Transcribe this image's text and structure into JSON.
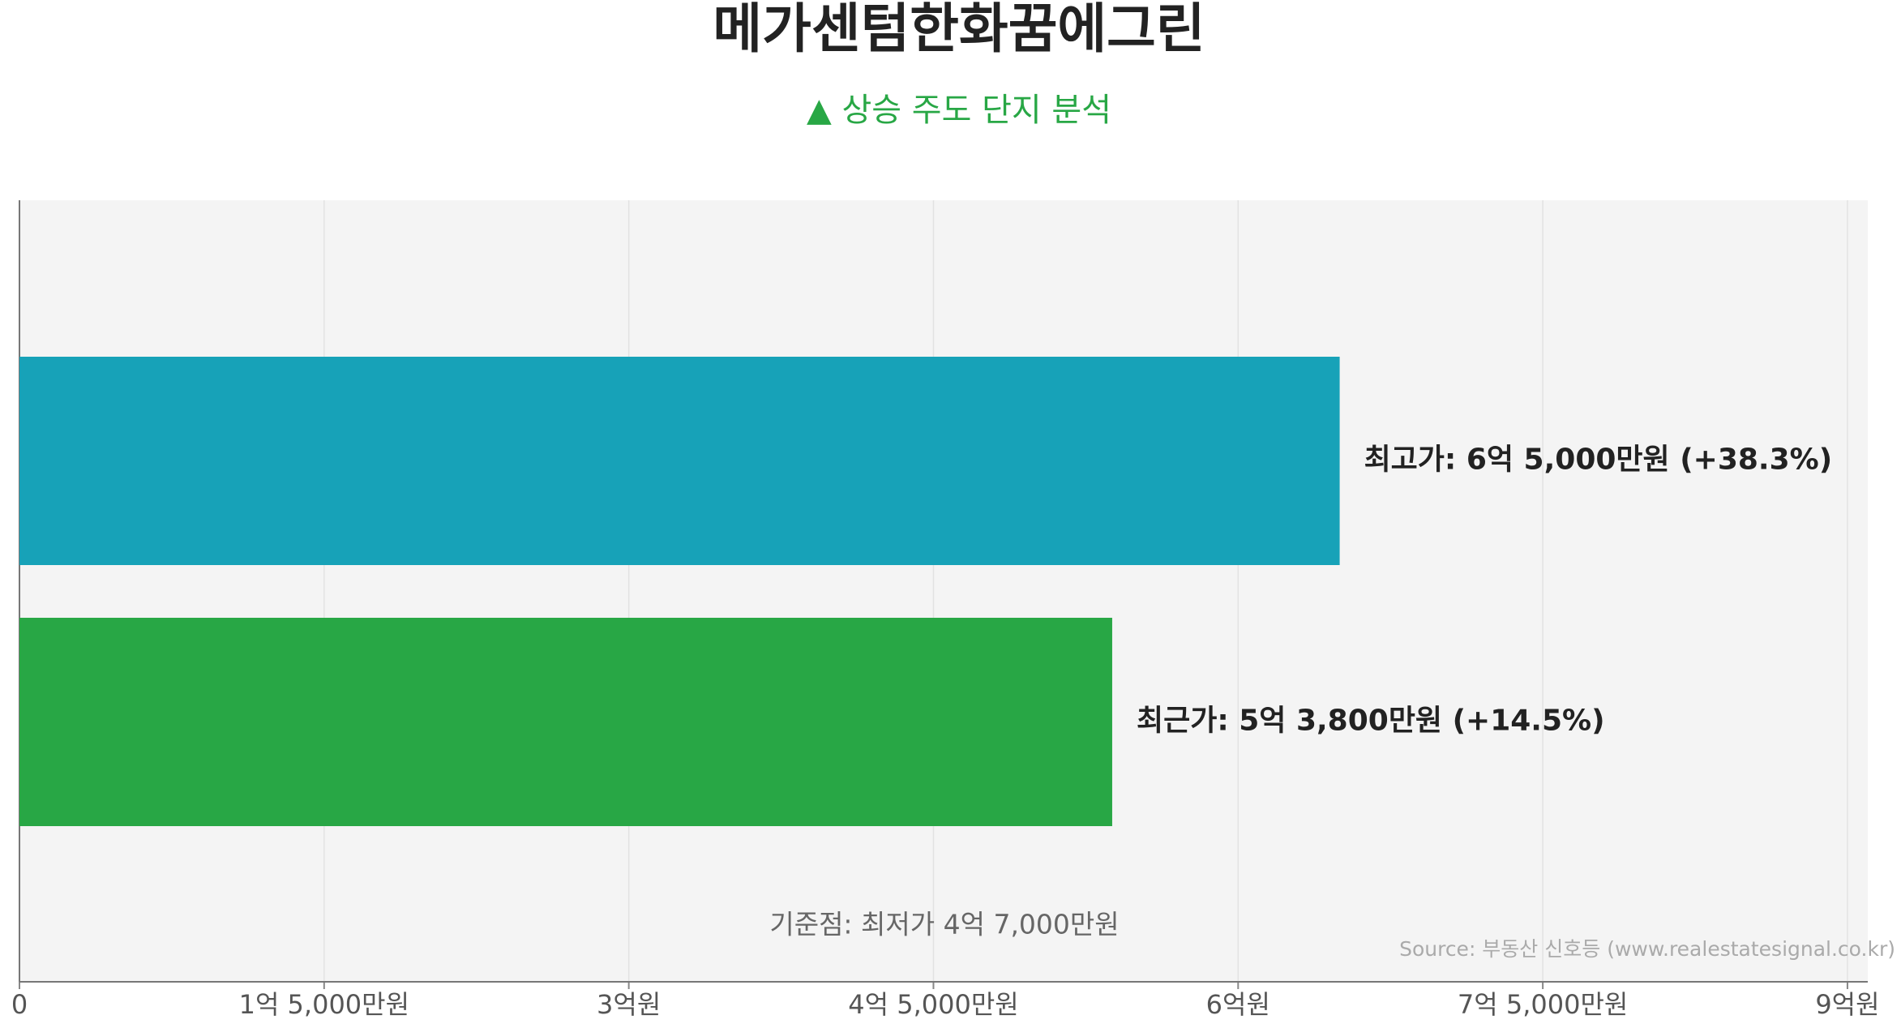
{
  "chart_data": {
    "type": "hbar",
    "title": "메가센텀한화꿈에그린",
    "subtitle": "▲ 상승 주도 단지 분석",
    "values": [
      65000,
      53800
    ],
    "value_labels": [
      "최고가: 6억 5,000만원 (+38.3%)",
      "최근가: 5억 3,800만원 (+14.5%)"
    ],
    "colors": [
      "#17a2b8",
      "#28a745"
    ],
    "xlim": [
      0,
      91000
    ],
    "xticks": [
      0,
      {
        "value": 15000,
        "label": "1억 5,000만원"
      },
      {
        "value": 30000,
        "label": "3억원"
      },
      {
        "value": 45000,
        "label": "4억 5,000만원"
      },
      {
        "value": 60000,
        "label": "6억원"
      },
      {
        "value": 75000,
        "label": "7억 5,000만원"
      },
      {
        "value": 90000,
        "label": "9억원"
      }
    ],
    "grid": true,
    "annotation": "기준점: 최저가 4억 7,000만원",
    "source": "Source: 부동산 신호등 (www.realestatesignal.co.kr)"
  }
}
